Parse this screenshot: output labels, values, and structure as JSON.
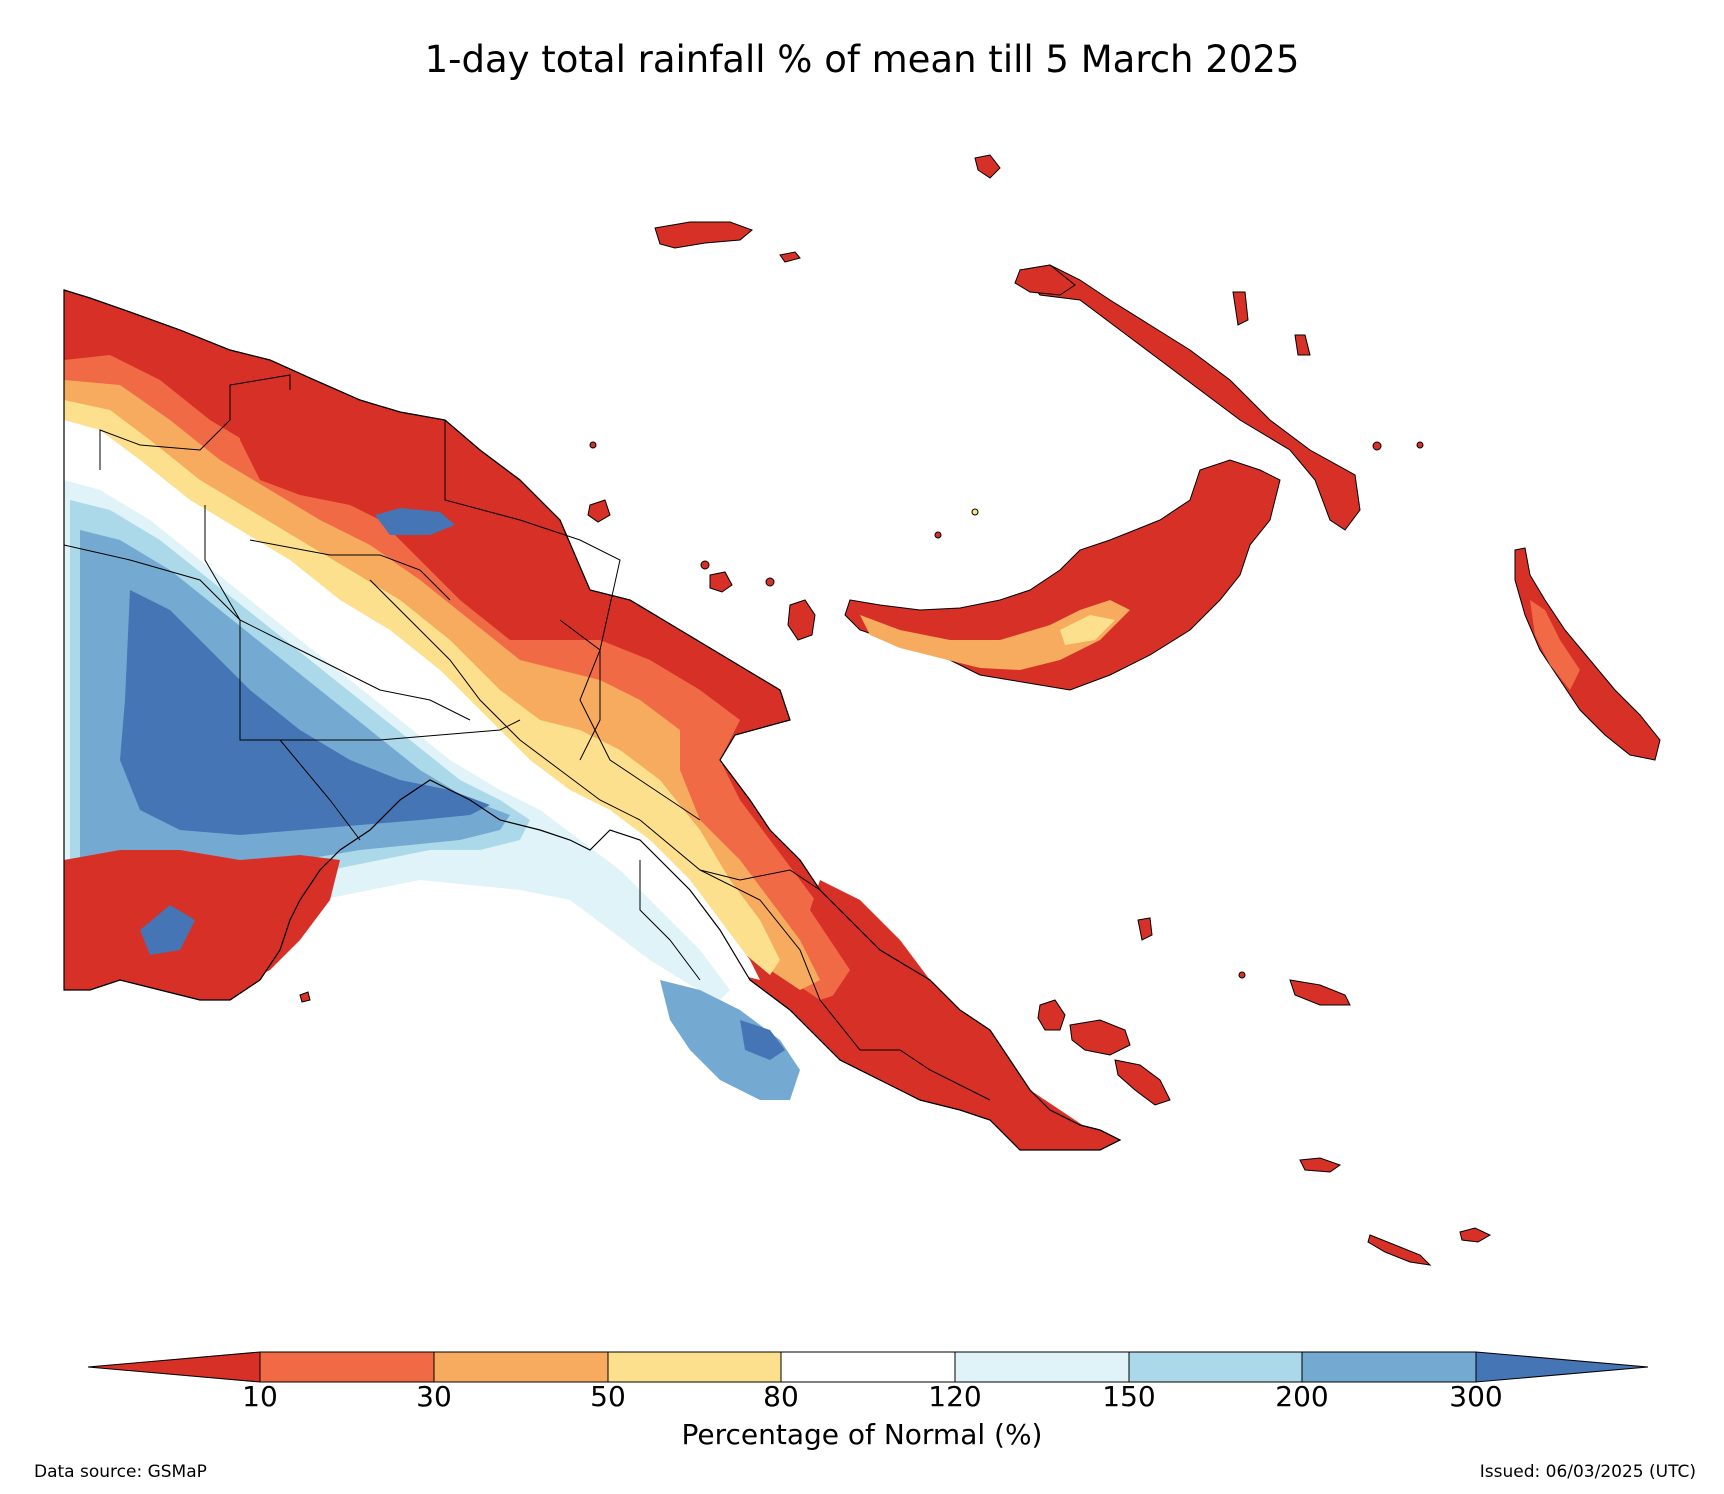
{
  "title": "1-day total rainfall % of mean till 5 March 2025",
  "colorbar": {
    "title": "Percentage of Normal (%)",
    "ticks": [
      "10",
      "30",
      "50",
      "80",
      "120",
      "150",
      "200",
      "300"
    ],
    "colors": [
      "#d73027",
      "#f06a45",
      "#f6ab5f",
      "#fde08e",
      "#ffffff",
      "#e0f3f8",
      "#abd9e9",
      "#74aad1",
      "#4575b4"
    ],
    "extend": "both"
  },
  "footer": {
    "source": "Data source: GSMaP",
    "issued": "Issued: 06/03/2025 (UTC)"
  },
  "palette": {
    "below_10": "#d73027",
    "10_30": "#f06a45",
    "30_50": "#f6ab5f",
    "50_80": "#fde08e",
    "80_120": "#ffffff",
    "120_150": "#e0f3f8",
    "150_200": "#abd9e9",
    "200_300": "#74aad1",
    "above_300": "#4575b4",
    "boundary": "#000000"
  }
}
